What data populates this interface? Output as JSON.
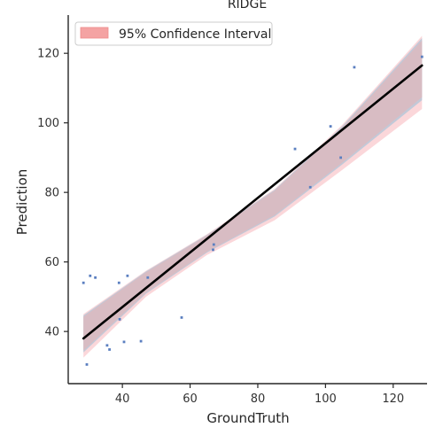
{
  "chart_data": {
    "type": "scatter",
    "title": "RIDGE",
    "xlabel": "GroundTruth",
    "ylabel": "Prediction",
    "xlim": [
      24,
      130
    ],
    "ylim": [
      25,
      131
    ],
    "xticks": [
      40,
      60,
      80,
      100,
      120
    ],
    "yticks": [
      40,
      60,
      80,
      100,
      120
    ],
    "grid": false,
    "legend_position": "top-left",
    "legend": [
      {
        "label": "95% Confidence Interval",
        "color": "#f4a3a3"
      }
    ],
    "colors": {
      "points": "#5b7fc0",
      "fit_line": "#000000",
      "ci_outer": "#bfc8d8",
      "ci_inner": "#d9bcc2",
      "ci_pink": "#fbd3d6"
    },
    "points": [
      {
        "x": 28.5,
        "y": 54
      },
      {
        "x": 29.5,
        "y": 30.5
      },
      {
        "x": 30.5,
        "y": 56
      },
      {
        "x": 32,
        "y": 55.5
      },
      {
        "x": 35.5,
        "y": 36
      },
      {
        "x": 36.2,
        "y": 34.8
      },
      {
        "x": 39,
        "y": 54
      },
      {
        "x": 39.2,
        "y": 43.5
      },
      {
        "x": 40.5,
        "y": 37
      },
      {
        "x": 41.5,
        "y": 56
      },
      {
        "x": 45.5,
        "y": 37.2
      },
      {
        "x": 47.5,
        "y": 55.5
      },
      {
        "x": 57.5,
        "y": 44
      },
      {
        "x": 66.8,
        "y": 63.5
      },
      {
        "x": 67,
        "y": 65
      },
      {
        "x": 91,
        "y": 92.5
      },
      {
        "x": 95.5,
        "y": 81.5
      },
      {
        "x": 101.5,
        "y": 99
      },
      {
        "x": 104.5,
        "y": 90
      },
      {
        "x": 108.5,
        "y": 116
      },
      {
        "x": 128.5,
        "y": 119
      }
    ],
    "fit_line": {
      "x": [
        28.5,
        128.5
      ],
      "y": [
        38,
        116.5
      ]
    },
    "confidence_band": {
      "x": [
        28.5,
        47,
        65,
        85,
        105,
        128.5
      ],
      "upper": [
        45,
        57.5,
        68,
        81,
        99.5,
        125
      ],
      "lower": [
        32.5,
        50,
        62,
        72,
        86.5,
        104
      ]
    }
  }
}
